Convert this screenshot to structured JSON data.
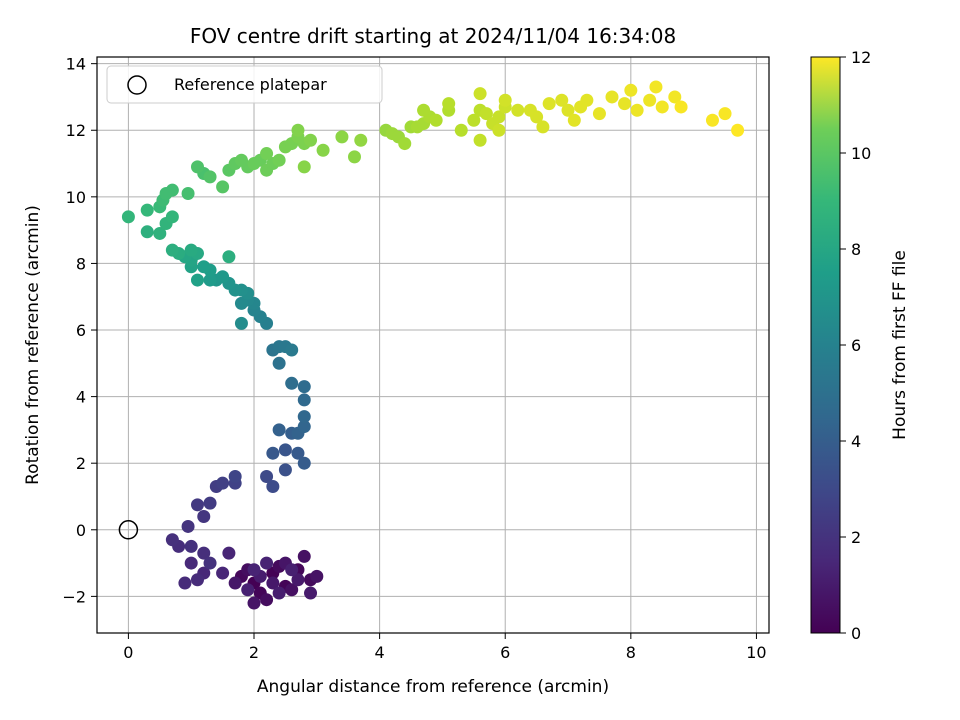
{
  "chart_data": {
    "type": "scatter",
    "title": "FOV centre drift starting at 2024/11/04 16:34:08",
    "xlabel": "Angular distance from reference (arcmin)",
    "ylabel": "Rotation from reference (arcmin)",
    "xlim": [
      -0.5,
      10.2
    ],
    "ylim": [
      -3.1,
      14.2
    ],
    "xticks": [
      0,
      2,
      4,
      6,
      8,
      10
    ],
    "yticks": [
      -2,
      0,
      2,
      4,
      6,
      8,
      10,
      12,
      14
    ],
    "grid": true,
    "legend": {
      "placement": "top-left",
      "entries": [
        "Reference platepar"
      ]
    },
    "reference_point": {
      "x": 0,
      "y": 0,
      "label": "Reference platepar"
    },
    "colorbar": {
      "label": "Hours from first FF file",
      "range": [
        0,
        12
      ],
      "ticks": [
        0,
        2,
        4,
        6,
        8,
        10,
        12
      ],
      "colormap": "viridis"
    },
    "points_columns": [
      "x",
      "y",
      "hours"
    ],
    "points": [
      [
        2.0,
        -1.6,
        0.0
      ],
      [
        2.3,
        -1.3,
        0.05
      ],
      [
        2.5,
        -1.7,
        0.1
      ],
      [
        2.1,
        -1.9,
        0.15
      ],
      [
        2.7,
        -1.2,
        0.2
      ],
      [
        1.8,
        -1.4,
        0.25
      ],
      [
        2.4,
        -1.1,
        0.3
      ],
      [
        2.9,
        -1.5,
        0.35
      ],
      [
        2.2,
        -2.1,
        0.4
      ],
      [
        1.9,
        -1.2,
        0.45
      ],
      [
        2.6,
        -1.8,
        0.5
      ],
      [
        2.8,
        -0.8,
        0.55
      ],
      [
        3.0,
        -1.4,
        0.6
      ],
      [
        2.0,
        -2.2,
        0.65
      ],
      [
        2.5,
        -1.0,
        0.7
      ],
      [
        1.7,
        -1.6,
        0.75
      ],
      [
        2.3,
        -1.6,
        0.8
      ],
      [
        2.7,
        -1.5,
        0.85
      ],
      [
        2.9,
        -1.9,
        0.9
      ],
      [
        2.1,
        -1.4,
        0.95
      ],
      [
        2.4,
        -1.9,
        1.0
      ],
      [
        2.6,
        -1.2,
        1.05
      ],
      [
        1.9,
        -1.8,
        1.1
      ],
      [
        2.2,
        -1.0,
        1.15
      ],
      [
        2.0,
        -1.2,
        1.2
      ],
      [
        1.6,
        -0.7,
        1.25
      ],
      [
        1.5,
        -1.3,
        1.3
      ],
      [
        1.2,
        -1.3,
        1.35
      ],
      [
        1.0,
        -1.0,
        1.4
      ],
      [
        0.9,
        -1.6,
        1.45
      ],
      [
        1.1,
        -1.5,
        1.5
      ],
      [
        0.8,
        -0.5,
        1.55
      ],
      [
        1.2,
        -0.7,
        1.6
      ],
      [
        0.7,
        -0.3,
        1.65
      ],
      [
        1.0,
        -0.5,
        1.7
      ],
      [
        1.3,
        -1.0,
        1.75
      ],
      [
        0.95,
        0.1,
        1.8
      ],
      [
        1.2,
        0.4,
        1.9
      ],
      [
        1.1,
        0.75,
        2.0
      ],
      [
        1.3,
        0.8,
        2.1
      ],
      [
        1.4,
        1.3,
        2.2
      ],
      [
        1.5,
        1.4,
        2.3
      ],
      [
        1.7,
        1.4,
        2.4
      ],
      [
        1.7,
        1.6,
        2.5
      ],
      [
        2.2,
        1.6,
        2.7
      ],
      [
        2.3,
        1.3,
        2.8
      ],
      [
        2.5,
        1.8,
        3.0
      ],
      [
        2.5,
        2.4,
        3.2
      ],
      [
        2.3,
        2.3,
        3.3
      ],
      [
        2.7,
        2.3,
        3.4
      ],
      [
        2.8,
        2.0,
        3.5
      ],
      [
        2.6,
        2.9,
        3.6
      ],
      [
        2.4,
        3.0,
        3.7
      ],
      [
        2.7,
        2.9,
        3.8
      ],
      [
        2.8,
        3.1,
        3.9
      ],
      [
        2.8,
        3.4,
        4.0
      ],
      [
        2.8,
        3.9,
        4.1
      ],
      [
        2.8,
        4.3,
        4.2
      ],
      [
        2.6,
        4.4,
        4.3
      ],
      [
        2.4,
        5.0,
        4.5
      ],
      [
        2.3,
        5.4,
        4.6
      ],
      [
        2.4,
        5.5,
        4.7
      ],
      [
        2.5,
        5.5,
        4.8
      ],
      [
        2.6,
        5.4,
        4.9
      ],
      [
        2.2,
        6.2,
        5.2
      ],
      [
        2.1,
        6.4,
        5.3
      ],
      [
        2.0,
        6.6,
        5.4
      ],
      [
        2.0,
        6.8,
        5.5
      ],
      [
        1.9,
        6.9,
        5.6
      ],
      [
        1.8,
        6.8,
        5.7
      ],
      [
        1.8,
        6.2,
        5.8
      ],
      [
        1.9,
        7.1,
        5.9
      ],
      [
        1.8,
        7.2,
        6.0
      ],
      [
        1.7,
        7.2,
        6.1
      ],
      [
        1.6,
        7.4,
        6.2
      ],
      [
        1.4,
        7.5,
        6.3
      ],
      [
        1.5,
        7.6,
        6.4
      ],
      [
        1.3,
        7.5,
        6.5
      ],
      [
        1.3,
        7.8,
        6.6
      ],
      [
        1.2,
        7.9,
        6.7
      ],
      [
        1.1,
        7.5,
        6.8
      ],
      [
        1.0,
        7.9,
        6.9
      ],
      [
        1.0,
        8.1,
        7.0
      ],
      [
        0.9,
        8.2,
        7.1
      ],
      [
        1.1,
        8.3,
        7.2
      ],
      [
        1.0,
        8.4,
        7.3
      ],
      [
        0.8,
        8.3,
        7.4
      ],
      [
        0.7,
        8.4,
        7.5
      ],
      [
        1.6,
        8.2,
        7.5
      ],
      [
        0.3,
        8.95,
        7.6
      ],
      [
        0.5,
        8.9,
        7.7
      ],
      [
        0.6,
        9.2,
        7.8
      ],
      [
        0.7,
        9.4,
        7.9
      ],
      [
        0.0,
        9.4,
        7.9
      ],
      [
        0.3,
        9.6,
        8.0
      ],
      [
        0.5,
        9.7,
        8.1
      ],
      [
        0.55,
        9.9,
        8.2
      ],
      [
        0.7,
        10.2,
        8.3
      ],
      [
        0.6,
        10.1,
        8.3
      ],
      [
        0.95,
        10.1,
        8.4
      ],
      [
        1.2,
        10.7,
        8.5
      ],
      [
        1.1,
        10.9,
        8.6
      ],
      [
        1.3,
        10.6,
        8.7
      ],
      [
        1.5,
        10.3,
        8.8
      ],
      [
        1.6,
        10.8,
        8.9
      ],
      [
        1.7,
        11.0,
        9.0
      ],
      [
        1.8,
        11.1,
        9.1
      ],
      [
        1.9,
        10.9,
        9.1
      ],
      [
        2.0,
        11.0,
        9.2
      ],
      [
        2.1,
        11.1,
        9.2
      ],
      [
        2.2,
        10.8,
        9.3
      ],
      [
        2.3,
        11.0,
        9.3
      ],
      [
        2.4,
        11.1,
        9.4
      ],
      [
        2.2,
        11.3,
        9.4
      ],
      [
        2.5,
        11.5,
        9.5
      ],
      [
        2.6,
        11.6,
        9.5
      ],
      [
        2.7,
        11.8,
        9.6
      ],
      [
        2.8,
        11.6,
        9.6
      ],
      [
        2.9,
        11.7,
        9.7
      ],
      [
        2.7,
        12.0,
        9.7
      ],
      [
        2.8,
        10.9,
        9.8
      ],
      [
        3.1,
        11.4,
        9.8
      ],
      [
        3.4,
        11.8,
        9.9
      ],
      [
        3.6,
        11.2,
        9.9
      ],
      [
        3.7,
        11.7,
        10.0
      ],
      [
        4.1,
        12.0,
        10.1
      ],
      [
        4.2,
        11.9,
        10.2
      ],
      [
        4.3,
        11.8,
        10.2
      ],
      [
        4.4,
        11.6,
        10.3
      ],
      [
        4.5,
        12.1,
        10.3
      ],
      [
        4.6,
        12.1,
        10.4
      ],
      [
        4.7,
        12.2,
        10.4
      ],
      [
        4.8,
        12.4,
        10.5
      ],
      [
        4.7,
        12.6,
        10.5
      ],
      [
        4.9,
        12.3,
        10.6
      ],
      [
        5.1,
        12.6,
        10.6
      ],
      [
        5.1,
        12.8,
        10.7
      ],
      [
        5.3,
        12.0,
        10.7
      ],
      [
        5.5,
        12.3,
        10.8
      ],
      [
        5.6,
        12.6,
        10.8
      ],
      [
        5.7,
        12.5,
        10.9
      ],
      [
        5.6,
        11.7,
        10.9
      ],
      [
        5.8,
        12.2,
        11.0
      ],
      [
        5.9,
        12.4,
        11.0
      ],
      [
        6.0,
        12.7,
        11.1
      ],
      [
        5.9,
        12.0,
        11.1
      ],
      [
        5.6,
        13.1,
        11.1
      ],
      [
        6.0,
        12.9,
        11.2
      ],
      [
        6.2,
        12.6,
        11.2
      ],
      [
        6.4,
        12.6,
        11.3
      ],
      [
        6.5,
        12.4,
        11.3
      ],
      [
        6.6,
        12.1,
        11.3
      ],
      [
        6.7,
        12.8,
        11.4
      ],
      [
        6.9,
        12.9,
        11.4
      ],
      [
        7.0,
        12.6,
        11.4
      ],
      [
        7.1,
        12.3,
        11.5
      ],
      [
        7.2,
        12.7,
        11.5
      ],
      [
        7.3,
        12.9,
        11.5
      ],
      [
        7.5,
        12.5,
        11.6
      ],
      [
        7.7,
        13.0,
        11.6
      ],
      [
        7.9,
        12.8,
        11.6
      ],
      [
        8.0,
        13.2,
        11.7
      ],
      [
        8.1,
        12.6,
        11.7
      ],
      [
        8.3,
        12.9,
        11.7
      ],
      [
        8.4,
        13.3,
        11.8
      ],
      [
        8.5,
        12.7,
        11.8
      ],
      [
        8.7,
        13.0,
        11.8
      ],
      [
        8.8,
        12.7,
        11.9
      ],
      [
        9.3,
        12.3,
        11.9
      ],
      [
        9.5,
        12.5,
        11.9
      ],
      [
        9.7,
        12.0,
        12.0
      ]
    ]
  }
}
